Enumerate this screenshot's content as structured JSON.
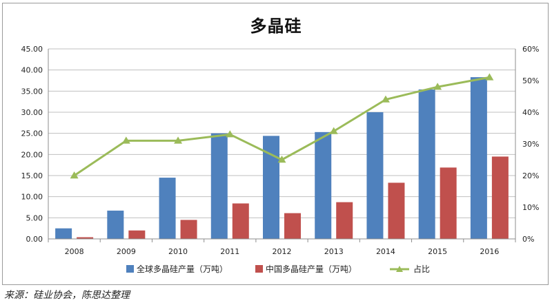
{
  "title": "多晶硅",
  "source": "来源：硅业协会，陈思达整理",
  "chart_data": {
    "type": "bar+line",
    "title": "多晶硅",
    "categories": [
      "2008",
      "2009",
      "2010",
      "2011",
      "2012",
      "2013",
      "2014",
      "2015",
      "2016"
    ],
    "series": [
      {
        "name": "全球多晶硅产量（万吨）",
        "type": "bar",
        "axis": "left",
        "color": "#4f81bd",
        "values": [
          2.5,
          6.7,
          14.5,
          25.0,
          24.4,
          25.3,
          30.0,
          35.4,
          38.3
        ]
      },
      {
        "name": "中国多晶硅产量（万吨）",
        "type": "bar",
        "axis": "left",
        "color": "#c0504d",
        "values": [
          0.4,
          2.0,
          4.5,
          8.4,
          6.1,
          8.7,
          13.3,
          16.9,
          19.5
        ]
      },
      {
        "name": "占比",
        "type": "line",
        "axis": "right",
        "color": "#9bbb59",
        "values": [
          20,
          31,
          31,
          33,
          25,
          34,
          44,
          48,
          51
        ]
      }
    ],
    "y_left": {
      "min": 0,
      "max": 45,
      "step": 5,
      "ticks": [
        "0.00",
        "5.00",
        "10.00",
        "15.00",
        "20.00",
        "25.00",
        "30.00",
        "35.00",
        "40.00",
        "45.00"
      ]
    },
    "y_right": {
      "min": 0,
      "max": 60,
      "step": 10,
      "ticks": [
        "0%",
        "10%",
        "20%",
        "30%",
        "40%",
        "50%",
        "60%"
      ]
    },
    "grid": true,
    "legend": "bottom"
  }
}
